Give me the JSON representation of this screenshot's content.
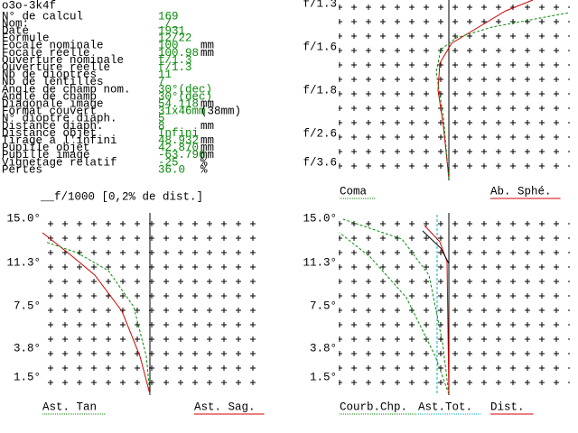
{
  "header": {
    "title": "o3o-3k4f"
  },
  "parameters": [
    {
      "label": "N° de calcul",
      "value": "169"
    },
    {
      "label": "Nom:",
      "value": "_/_"
    },
    {
      "label": "Date",
      "value": "1931"
    },
    {
      "label": "Formule",
      "value": "12/22"
    },
    {
      "label": "Focale nominale",
      "value": "100",
      "unit": "mm"
    },
    {
      "label": "Focale réelle",
      "value": "100.98",
      "unit": "mm"
    },
    {
      "label": "Ouverture nominale",
      "value": "f/1.3"
    },
    {
      "label": "Ouverture réelle",
      "value": "f/1.3"
    },
    {
      "label": "Nb de dioptres",
      "value": "11"
    },
    {
      "label": "Nb de lentilles",
      "value": "7"
    },
    {
      "label": "Angle de champ nom.",
      "value": "30°(dec)"
    },
    {
      "label": "Angle de champ",
      "value": "30°(dec)"
    },
    {
      "label": "Diagonale image",
      "value": "54.118",
      "unit": "mm"
    },
    {
      "label": "Format couvert",
      "value": "31x46mm",
      "unit": "(38mm)"
    },
    {
      "label": "N° dioptre diaph.",
      "value": "5"
    },
    {
      "label": "Distance diaph.",
      "value": "8",
      "unit": "mm"
    },
    {
      "label": "Distance objet",
      "value": "Infini"
    },
    {
      "label": "Tirage à l'infini",
      "value": "48.932",
      "unit": "mm"
    },
    {
      "label": "Pupille objet",
      "value": "42.870",
      "unit": "mm"
    },
    {
      "label": "Pupille image",
      "value": "-63.796",
      "unit": "mm"
    },
    {
      "label": "Vignetage relatif",
      "value": "-25",
      "unit": "%"
    },
    {
      "label": "Pertes",
      "value": "36.0",
      "unit": "%"
    }
  ],
  "panels": [
    {
      "axis_labels": [
        "f/1.3",
        "f/1.6",
        "f/1.8",
        "f/2.6",
        "f/3.6"
      ],
      "legend": [
        {
          "text": "Coma",
          "color": "#0a8a0a"
        },
        {
          "text": "Ab. Sphé.",
          "color": "#d00000"
        }
      ]
    },
    {
      "title": "__f/1000 [0,2% de dist.]",
      "axis_labels": [
        "15.0°",
        "11.3°",
        "7.5°",
        "3.8°",
        "1.5°"
      ],
      "legend": [
        {
          "text": "Ast. Tan",
          "color": "#0a8a0a"
        },
        {
          "text": "Ast. Sag.",
          "color": "#d00000"
        }
      ]
    },
    {
      "axis_labels": [
        "15.0°",
        "11.3°",
        "7.5°",
        "3.8°",
        "1.5°"
      ],
      "legend": [
        {
          "text": "Courb.Chp.",
          "color": "#0a8a0a"
        },
        {
          "text": "Ast.Tot.",
          "color": "#00b0c0"
        },
        {
          "text": "Dist.",
          "color": "#d00000"
        }
      ]
    }
  ]
}
